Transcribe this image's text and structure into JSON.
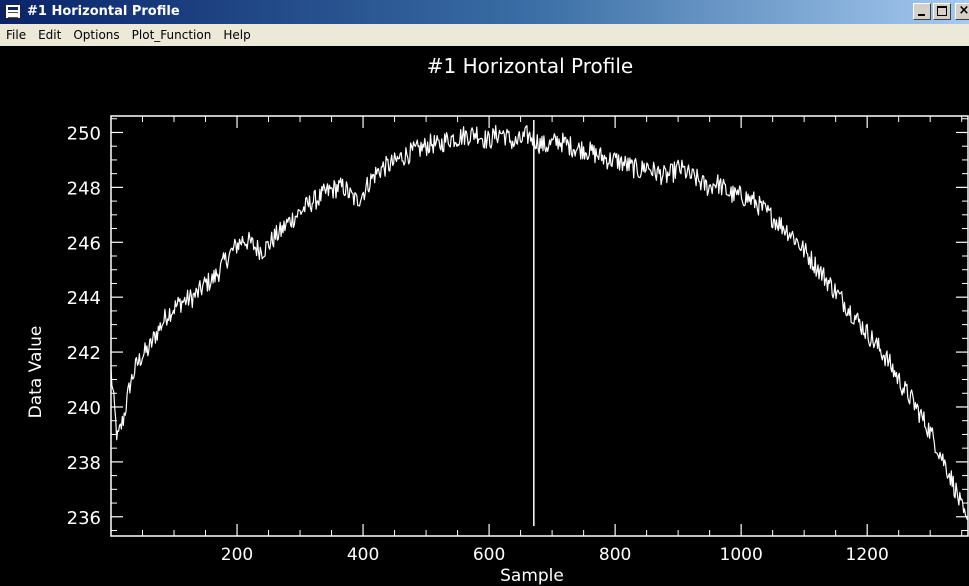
{
  "window": {
    "title": "#1 Horizontal Profile",
    "controls": {
      "close_glyph": "×"
    }
  },
  "menu": {
    "items": [
      {
        "label": "File"
      },
      {
        "label": "Edit"
      },
      {
        "label": "Options"
      },
      {
        "label": "Plot_Function"
      },
      {
        "label": "Help"
      }
    ]
  },
  "colors": {
    "plot_background": "#000000",
    "plot_foreground": "#ffffff",
    "titlebar_start": "#0a246a",
    "menubar": "#ece9d8"
  },
  "chart_data": {
    "type": "line",
    "title": "#1 Horizontal Profile",
    "xlabel": "Sample",
    "ylabel": "Data Value",
    "xlim": [
      0,
      1360
    ],
    "ylim": [
      235.3,
      250.6
    ],
    "x_ticks": [
      200,
      400,
      600,
      800,
      1000,
      1200
    ],
    "y_ticks": [
      236,
      238,
      240,
      242,
      244,
      246,
      248,
      250
    ],
    "cursor_x": 671,
    "grid": false,
    "legend": "none",
    "series": [
      {
        "x": [
          0,
          10,
          20,
          30,
          40,
          50,
          60,
          70,
          80,
          90,
          100,
          110,
          120,
          130,
          140,
          150,
          160,
          170,
          180,
          190,
          200,
          210,
          220,
          230,
          240,
          250,
          260,
          270,
          280,
          290,
          300,
          310,
          320,
          330,
          340,
          350,
          360,
          370,
          380,
          390,
          400,
          410,
          420,
          430,
          440,
          450,
          460,
          470,
          480,
          490,
          500,
          510,
          520,
          530,
          540,
          550,
          560,
          570,
          580,
          590,
          600,
          610,
          620,
          630,
          640,
          650,
          660,
          670,
          680,
          690,
          700,
          710,
          720,
          730,
          740,
          750,
          760,
          770,
          780,
          790,
          800,
          810,
          820,
          830,
          840,
          850,
          860,
          870,
          880,
          890,
          900,
          910,
          920,
          930,
          940,
          950,
          960,
          970,
          980,
          990,
          1000,
          1010,
          1020,
          1030,
          1040,
          1050,
          1060,
          1070,
          1080,
          1090,
          1100,
          1110,
          1120,
          1130,
          1140,
          1150,
          1160,
          1170,
          1180,
          1190,
          1200,
          1210,
          1220,
          1230,
          1240,
          1250,
          1260,
          1270,
          1280,
          1290,
          1300,
          1310,
          1320,
          1330,
          1340,
          1350,
          1360
        ],
        "values": [
          241.3,
          238.8,
          239.6,
          240.8,
          241.5,
          241.9,
          242.1,
          242.6,
          243.0,
          243.4,
          243.6,
          243.8,
          243.9,
          244.0,
          244.2,
          244.5,
          244.6,
          244.9,
          245.3,
          245.6,
          245.9,
          246.1,
          246.0,
          245.8,
          245.7,
          245.9,
          246.2,
          246.4,
          246.7,
          246.9,
          247.1,
          247.3,
          247.5,
          247.6,
          247.8,
          247.9,
          248.0,
          248.0,
          247.7,
          247.5,
          247.8,
          248.2,
          248.5,
          248.7,
          248.8,
          248.9,
          249.1,
          249.2,
          249.3,
          249.4,
          249.5,
          249.6,
          249.5,
          249.7,
          249.8,
          249.8,
          249.9,
          249.9,
          250.0,
          249.8,
          249.7,
          249.9,
          250.0,
          249.8,
          249.6,
          249.7,
          249.9,
          249.8,
          249.6,
          249.5,
          249.6,
          249.7,
          249.6,
          249.5,
          249.4,
          249.4,
          249.3,
          249.2,
          249.1,
          249.0,
          249.0,
          248.9,
          248.8,
          248.7,
          248.6,
          248.8,
          248.6,
          248.5,
          248.4,
          248.5,
          248.7,
          248.6,
          248.4,
          248.3,
          248.1,
          248.0,
          248.2,
          248.0,
          247.8,
          247.7,
          247.7,
          247.6,
          247.5,
          247.3,
          247.1,
          246.9,
          246.7,
          246.5,
          246.3,
          246.0,
          245.7,
          245.4,
          245.1,
          244.8,
          244.5,
          244.2,
          243.9,
          243.6,
          243.3,
          243.0,
          242.7,
          242.4,
          242.1,
          241.8,
          241.4,
          241.0,
          240.6,
          240.3,
          239.9,
          239.5,
          239.1,
          238.6,
          238.1,
          237.6,
          237.0,
          236.3,
          235.6
        ]
      }
    ]
  }
}
